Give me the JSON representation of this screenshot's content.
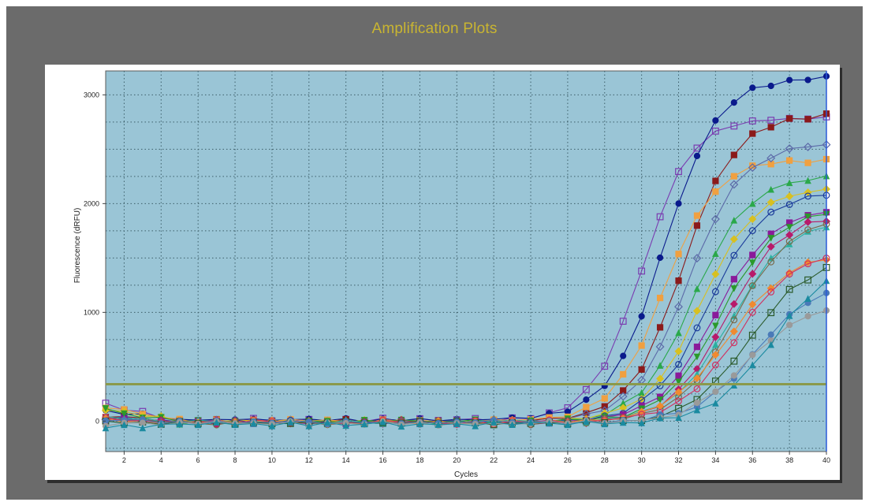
{
  "chart_data": {
    "type": "line",
    "title": "Amplification Plots",
    "xlabel": "Cycles",
    "ylabel": "Fluorescence (dRFU)",
    "xlim": [
      1,
      40
    ],
    "ylim": [
      -280,
      3220
    ],
    "xticks": [
      2,
      4,
      6,
      8,
      10,
      12,
      14,
      16,
      18,
      20,
      22,
      24,
      26,
      28,
      30,
      32,
      34,
      36,
      38,
      40
    ],
    "yticks": [
      0,
      1000,
      2000,
      3000
    ],
    "grid": true,
    "threshold": 340,
    "background_color": "#9ac5d6",
    "threshold_color": "#8a9a4c",
    "series": [
      {
        "color": "#7a3bb0",
        "marker": "square-open",
        "plateau": 2780,
        "ct": 26.8,
        "k": 0.75,
        "base": 40
      },
      {
        "color": "#0a1a8c",
        "marker": "circle",
        "plateau": 3150,
        "ct": 28.0,
        "k": 0.68,
        "base": 60
      },
      {
        "color": "#8b1a1a",
        "marker": "square",
        "plateau": 2820,
        "ct": 29.0,
        "k": 0.7,
        "base": 20
      },
      {
        "color": "#f0a040",
        "marker": "square",
        "plateau": 2400,
        "ct": 28.0,
        "k": 0.72,
        "base": 30
      },
      {
        "color": "#5c6aa8",
        "marker": "diamond-open",
        "plateau": 2560,
        "ct": 29.3,
        "k": 0.68,
        "base": 10
      },
      {
        "color": "#2aa84a",
        "marker": "triangle",
        "plateau": 2260,
        "ct": 29.6,
        "k": 0.68,
        "base": 0
      },
      {
        "color": "#d8c020",
        "marker": "diamond",
        "plateau": 2150,
        "ct": 30.0,
        "k": 0.68,
        "base": 20
      },
      {
        "color": "#1a3a9a",
        "marker": "circle-open",
        "plateau": 2120,
        "ct": 30.4,
        "k": 0.66,
        "base": 10
      },
      {
        "color": "#8a1a9a",
        "marker": "square",
        "plateau": 1980,
        "ct": 30.8,
        "k": 0.64,
        "base": 0
      },
      {
        "color": "#2a9a2a",
        "marker": "triangle-down",
        "plateau": 1960,
        "ct": 31.1,
        "k": 0.66,
        "base": 20
      },
      {
        "color": "#b81a6a",
        "marker": "diamond",
        "plateau": 1920,
        "ct": 31.4,
        "k": 0.66,
        "base": 0
      },
      {
        "color": "#2ab0a0",
        "marker": "triangle",
        "plateau": 1860,
        "ct": 31.6,
        "k": 0.64,
        "base": 10
      },
      {
        "color": "#7a6a4a",
        "marker": "circle-open",
        "plateau": 1900,
        "ct": 31.8,
        "k": 0.66,
        "base": -10
      },
      {
        "color": "#f08a30",
        "marker": "diamond",
        "plateau": 1560,
        "ct": 31.5,
        "k": 0.6,
        "base": 0
      },
      {
        "color": "#d03060",
        "marker": "circle-open",
        "plateau": 1600,
        "ct": 32.0,
        "k": 0.62,
        "base": 0
      },
      {
        "color": "#2a5a2a",
        "marker": "square-open",
        "plateau": 1520,
        "ct": 32.6,
        "k": 0.62,
        "base": -20
      },
      {
        "color": "#4a7ab8",
        "marker": "circle",
        "plateau": 1300,
        "ct": 33.0,
        "k": 0.62,
        "base": 0
      },
      {
        "color": "#9a9a9a",
        "marker": "circle",
        "plateau": 1100,
        "ct": 32.4,
        "k": 0.64,
        "base": -30
      },
      {
        "color": "#1a8aa0",
        "marker": "triangle",
        "plateau": 1500,
        "ct": 33.8,
        "k": 0.62,
        "base": -40
      }
    ]
  }
}
